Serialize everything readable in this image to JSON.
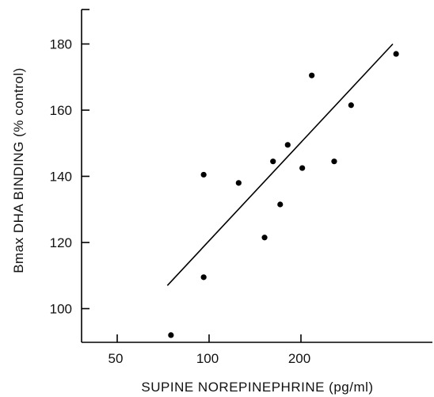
{
  "chart_data": {
    "type": "scatter",
    "title": "",
    "xlabel": "SUPINE NOREPINEPHRINE (pg/ml)",
    "ylabel": "Bmax DHA BINDING (% control)",
    "xscale": "log",
    "xlim": [
      35,
      430
    ],
    "ylim": [
      90,
      190
    ],
    "xticks": [
      50,
      100,
      200
    ],
    "xtick_labels": [
      "50",
      "100",
      "200"
    ],
    "yticks": [
      100,
      120,
      140,
      160,
      180
    ],
    "ytick_labels": [
      "100",
      "120",
      "140",
      "160",
      "180"
    ],
    "grid": false,
    "legend": "none",
    "points": [
      {
        "x": 75,
        "y": 92
      },
      {
        "x": 96,
        "y": 109.5
      },
      {
        "x": 96,
        "y": 140.5
      },
      {
        "x": 125,
        "y": 138
      },
      {
        "x": 152,
        "y": 121.5
      },
      {
        "x": 162,
        "y": 144.5
      },
      {
        "x": 171,
        "y": 131.5
      },
      {
        "x": 181,
        "y": 149.5
      },
      {
        "x": 202,
        "y": 142.5
      },
      {
        "x": 217,
        "y": 170.5
      },
      {
        "x": 257,
        "y": 144.5
      },
      {
        "x": 292,
        "y": 161.5
      },
      {
        "x": 410,
        "y": 177
      }
    ],
    "regression_line": {
      "x": [
        73,
        400
      ],
      "y": [
        107,
        180
      ]
    },
    "colors": {
      "points": "#000000",
      "line": "#000000",
      "axes": "#000000"
    }
  }
}
